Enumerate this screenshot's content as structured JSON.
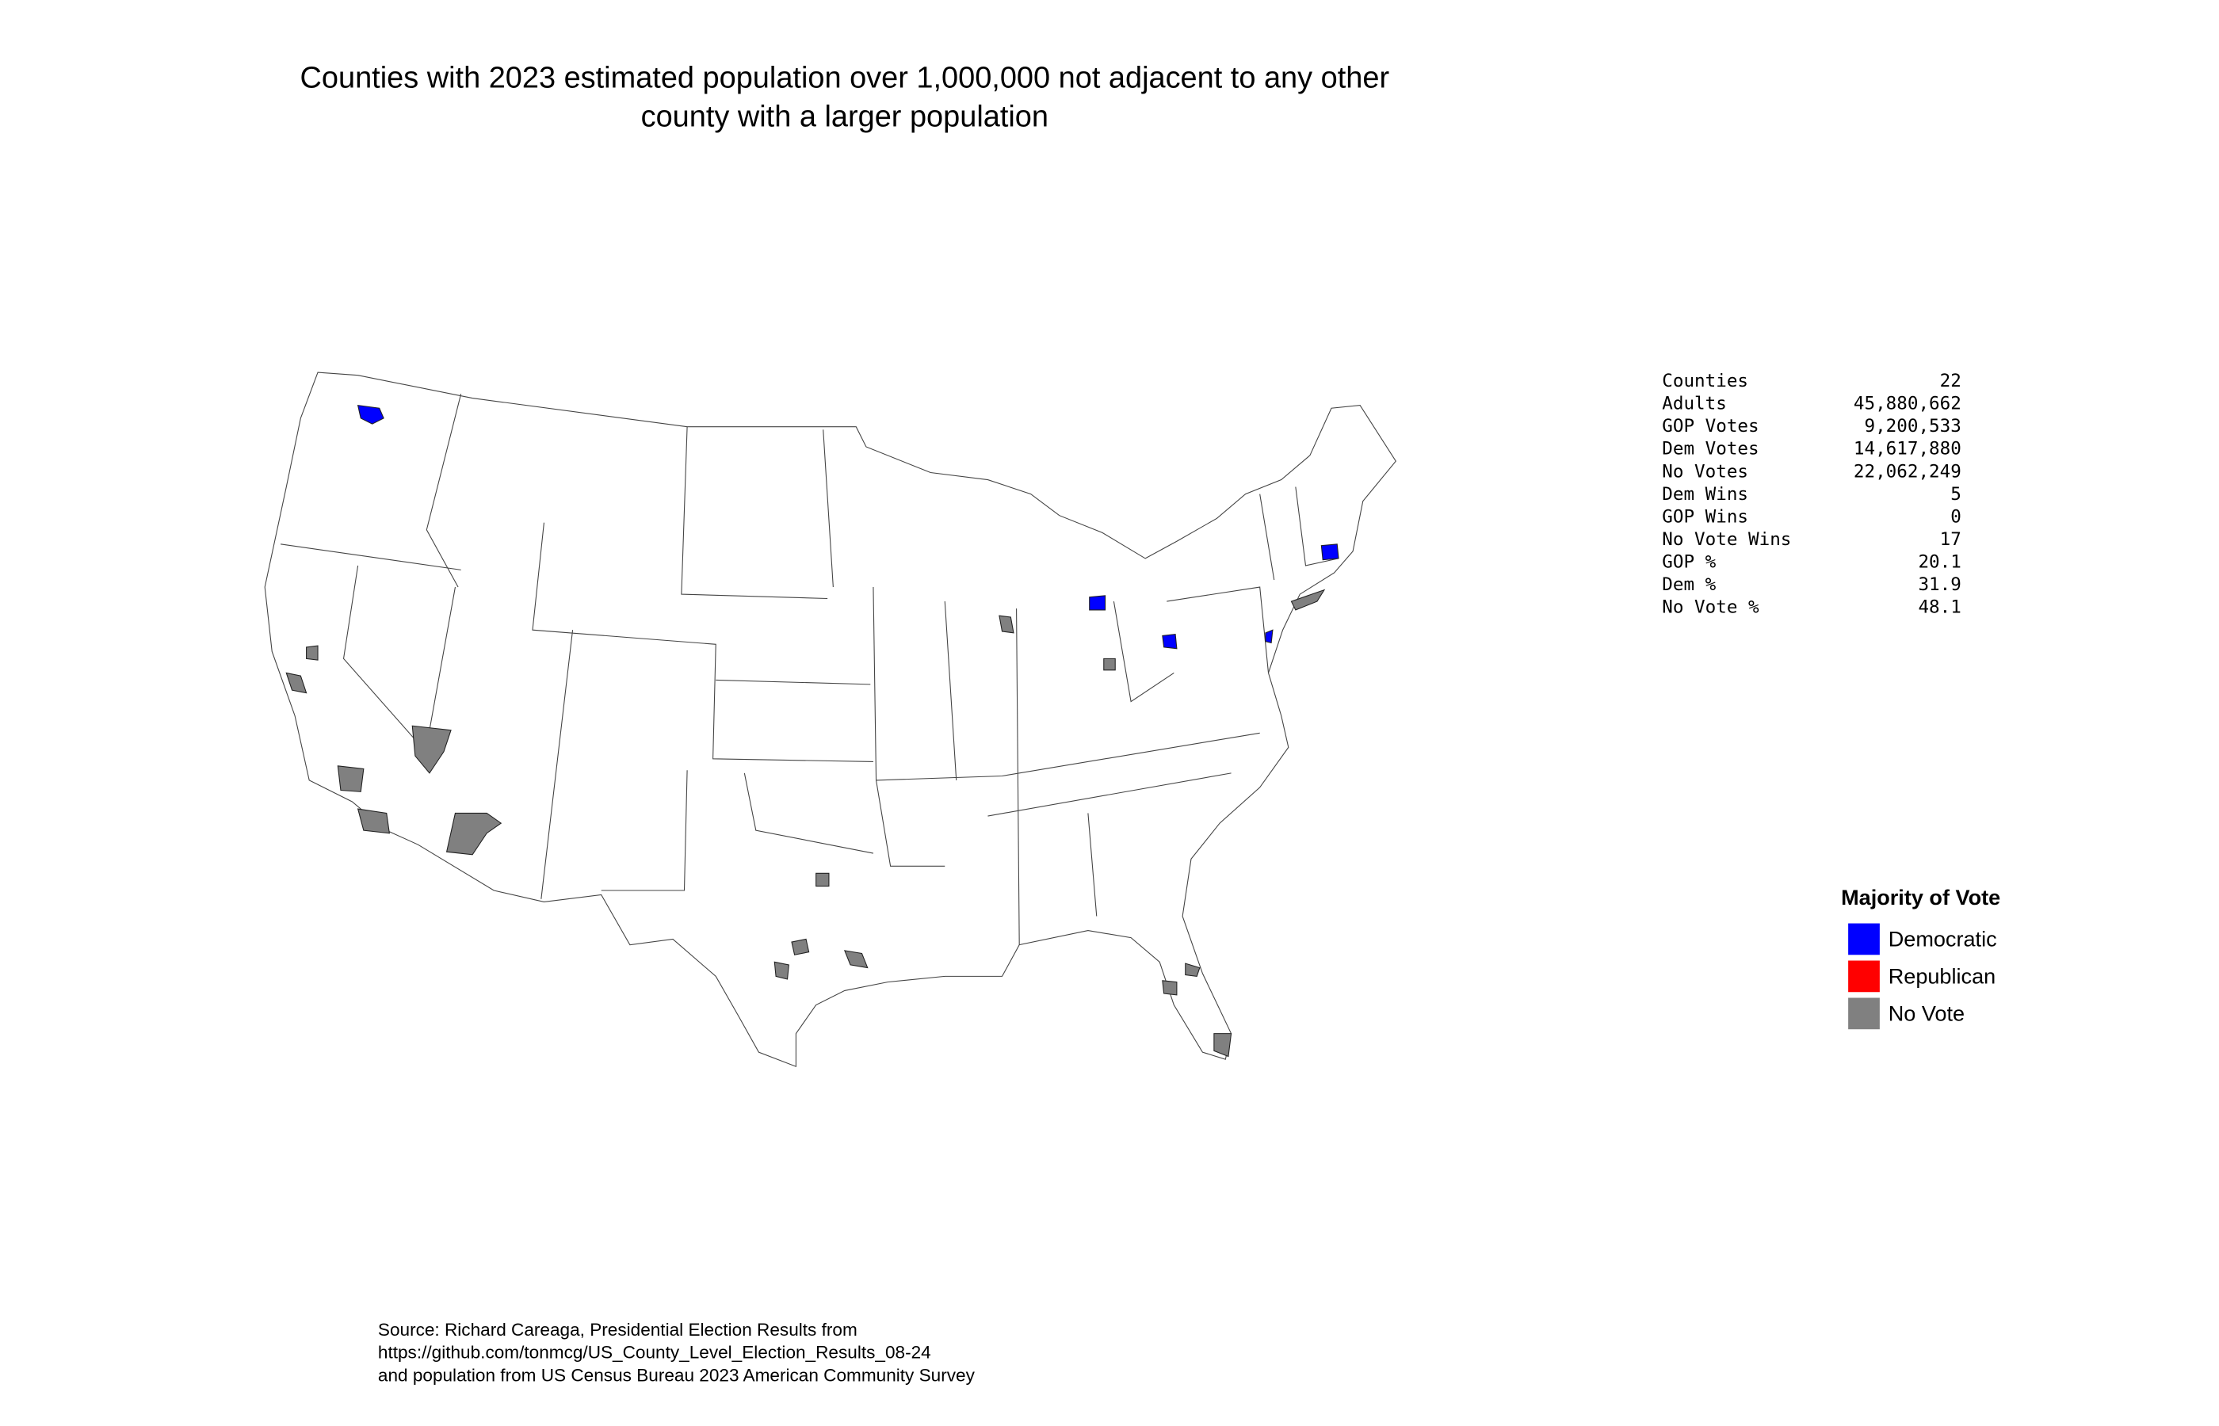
{
  "title": [
    "Counties with 2023 estimated population over 1,000,000 not adjacent to any other",
    "county with a larger population"
  ],
  "stats": {
    "rows": [
      [
        "Counties",
        "22"
      ],
      [
        "Adults",
        "45,880,662"
      ],
      [
        "GOP Votes",
        "9,200,533"
      ],
      [
        "Dem Votes",
        "14,617,880"
      ],
      [
        "No Votes",
        "22,062,249"
      ],
      [
        "Dem Wins",
        "5"
      ],
      [
        "GOP Wins",
        "0"
      ],
      [
        "No Vote Wins",
        "17"
      ],
      [
        "GOP %",
        "20.1"
      ],
      [
        "Dem %",
        "31.9"
      ],
      [
        "No Vote %",
        "48.1"
      ]
    ]
  },
  "legend": {
    "title": "Majority of Vote",
    "items": [
      {
        "label": "Democratic",
        "color": "#0000ff"
      },
      {
        "label": "Republican",
        "color": "#ff0000"
      },
      {
        "label": "No Vote",
        "color": "#808080"
      }
    ]
  },
  "source": {
    "lines": [
      "Source: Richard Careaga, Presidential Election Results from",
      "https://github.com/tonmcg/US_County_Level_Election_Results_08-24",
      "and population from US Census Bureau 2023 American Community Survey"
    ]
  }
}
